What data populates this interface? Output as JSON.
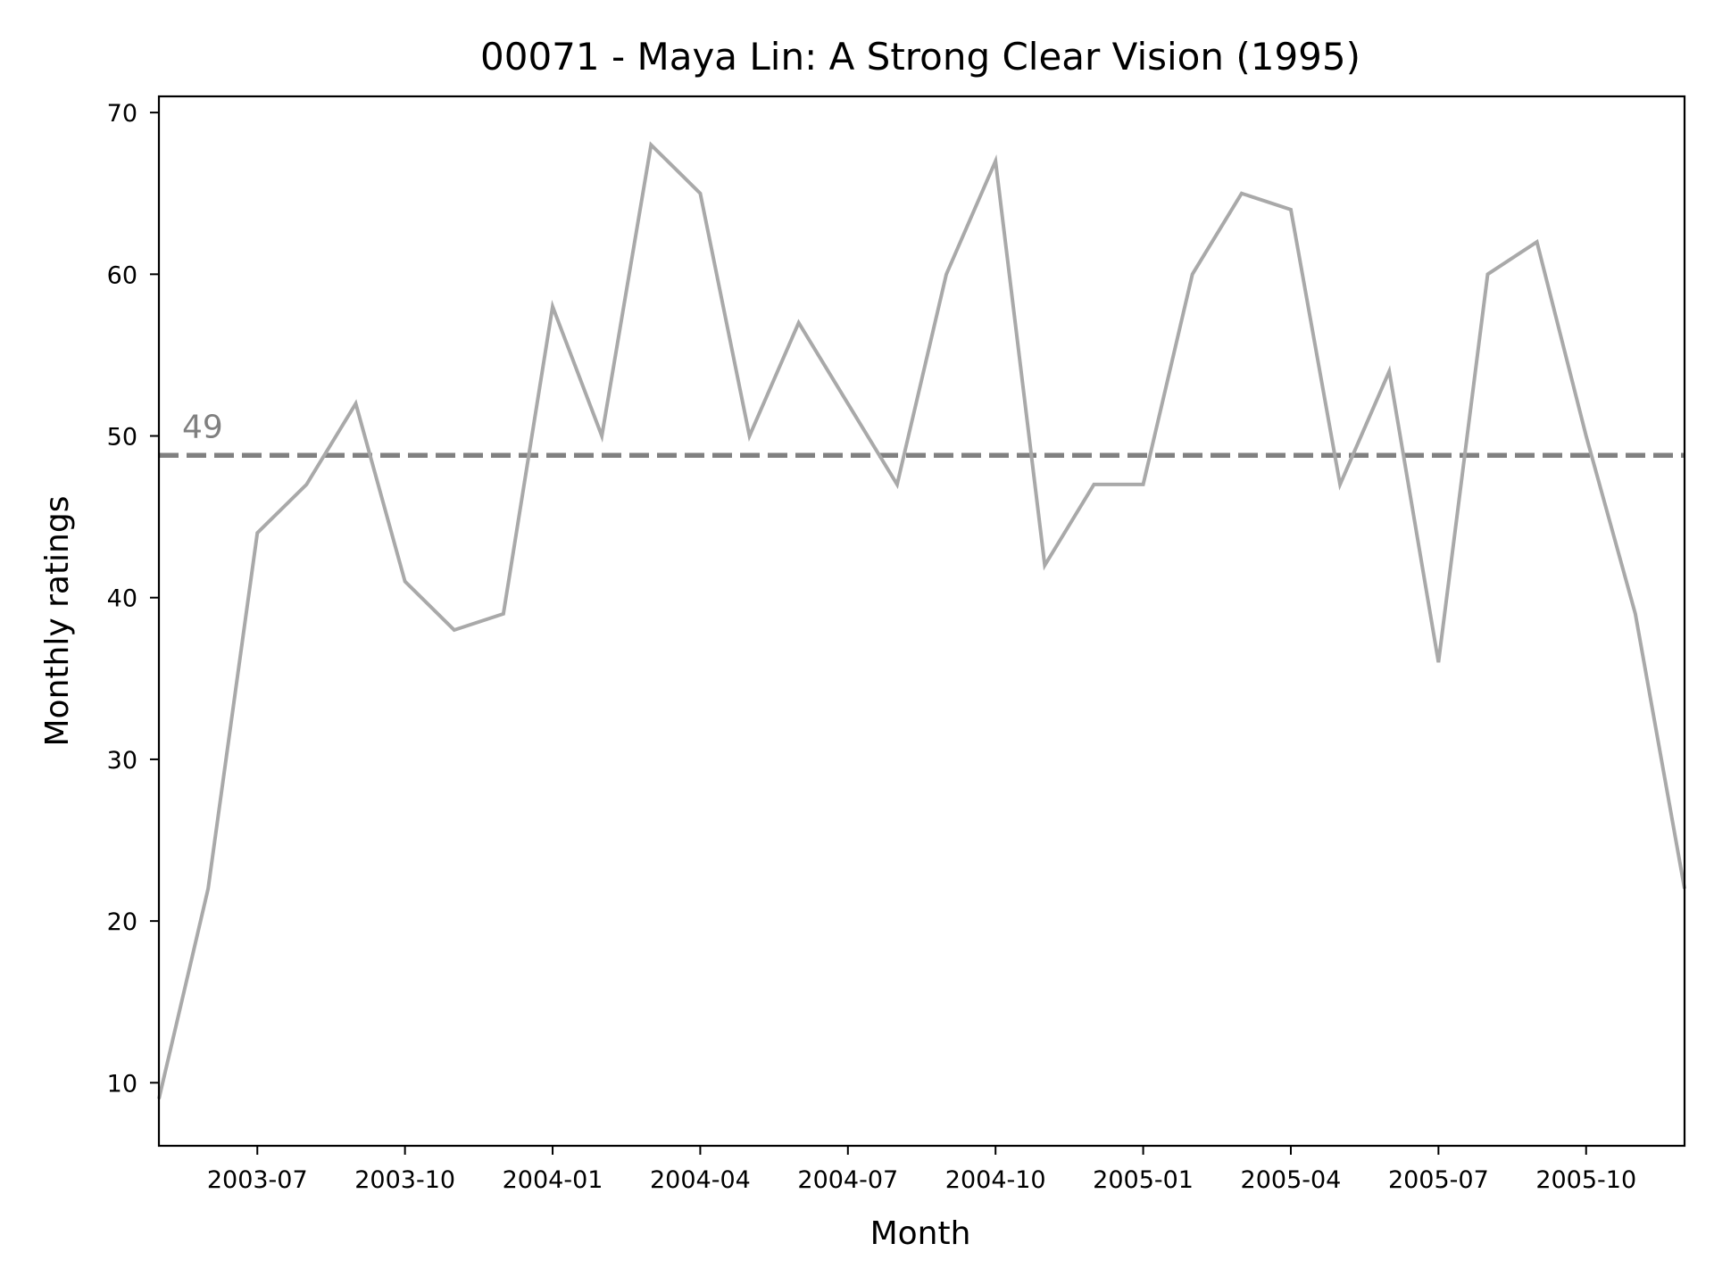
{
  "chart_data": {
    "type": "line",
    "title": "00071 - Maya Lin: A Strong Clear Vision (1995)",
    "xlabel": "Month",
    "ylabel": "Monthly ratings",
    "x": [
      "2003-05",
      "2003-06",
      "2003-07",
      "2003-08",
      "2003-09",
      "2003-10",
      "2003-11",
      "2003-12",
      "2004-01",
      "2004-02",
      "2004-03",
      "2004-04",
      "2004-05",
      "2004-06",
      "2004-07",
      "2004-08",
      "2004-09",
      "2004-10",
      "2004-11",
      "2004-12",
      "2005-01",
      "2005-02",
      "2005-03",
      "2005-04",
      "2005-05",
      "2005-06",
      "2005-07",
      "2005-08",
      "2005-09",
      "2005-10",
      "2005-11",
      "2005-12"
    ],
    "series": [
      {
        "values": [
          9,
          22,
          44,
          47,
          52,
          41,
          38,
          39,
          58,
          50,
          68,
          65,
          50,
          57,
          52,
          47,
          60,
          67,
          42,
          47,
          47,
          60,
          65,
          64,
          47,
          54,
          36,
          60,
          62,
          50,
          39,
          22
        ]
      }
    ],
    "reference_line": {
      "value": 48.8,
      "label": "49",
      "style": "dashed"
    },
    "x_ticks": [
      "2003-07",
      "2003-10",
      "2004-01",
      "2004-04",
      "2004-07",
      "2004-10",
      "2005-01",
      "2005-04",
      "2005-07",
      "2005-10"
    ],
    "y_ticks": [
      10,
      20,
      30,
      40,
      50,
      60,
      70
    ],
    "xlim": [
      "2003-05",
      "2005-12"
    ],
    "ylim": [
      6.1,
      71
    ],
    "grid": false,
    "legend": "none",
    "colors": {
      "series": "#a9a9a9",
      "reference": "#808080",
      "reference_label": "#808080",
      "axes": "#000000",
      "background": "#ffffff"
    }
  }
}
